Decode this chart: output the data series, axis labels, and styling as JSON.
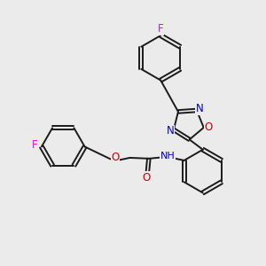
{
  "background_color": "#ebebeb",
  "bond_color": "#1a1a1a",
  "bond_width": 1.4,
  "atom_colors": {
    "F": "#ee00ee",
    "O": "#cc0000",
    "N": "#0000cc",
    "H": "#606060",
    "C": "#1a1a1a"
  },
  "font_size": 8.5
}
